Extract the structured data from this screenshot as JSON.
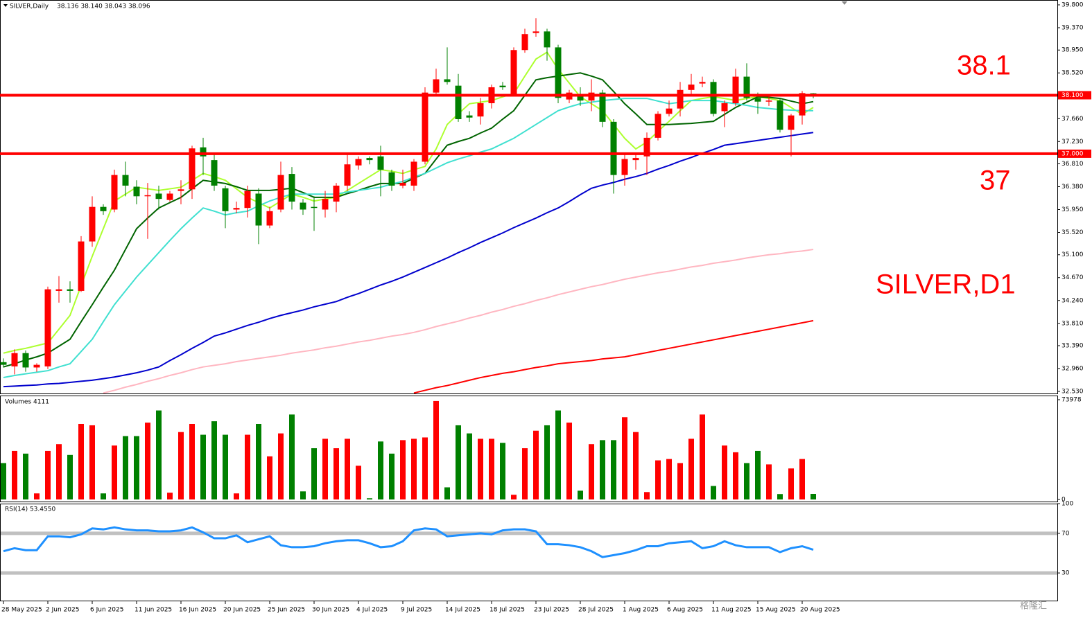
{
  "chart_data": [
    {
      "type": "candlestick",
      "title": "SILVER,Daily",
      "ohlc_text": "38.136 38.140 38.043 38.096",
      "categories": [
        "28 May 2025",
        null,
        null,
        null,
        "2 Jun 2025",
        null,
        null,
        null,
        "6 Jun 2025",
        null,
        null,
        null,
        "11 Jun 2025",
        null,
        null,
        null,
        "16 Jun 2025",
        null,
        null,
        null,
        "20 Jun 2025",
        null,
        null,
        null,
        "25 Jun 2025",
        null,
        null,
        null,
        "30 Jun 2025",
        null,
        null,
        null,
        "4 Jul 2025",
        null,
        null,
        null,
        "9 Jul 2025",
        null,
        null,
        null,
        "14 Jul 2025",
        null,
        null,
        null,
        "18 Jul 2025",
        null,
        null,
        null,
        "23 Jul 2025",
        null,
        null,
        null,
        "28 Jul 2025",
        null,
        null,
        null,
        "1 Aug 2025",
        null,
        null,
        null,
        "6 Aug 2025",
        null,
        null,
        null,
        "11 Aug 2025",
        null,
        null,
        null,
        "15 Aug 2025",
        null,
        null,
        null,
        "20 Aug 2025",
        null
      ],
      "open": [
        33.08,
        33.0,
        33.25,
        32.98,
        33.0,
        34.42,
        34.45,
        34.42,
        35.35,
        36.0,
        35.95,
        36.6,
        36.38,
        36.2,
        36.25,
        36.13,
        36.3,
        36.33,
        37.12,
        36.88,
        36.35,
        35.95,
        35.98,
        36.25,
        35.65,
        35.95,
        36.62,
        36.08,
        36.0,
        35.95,
        36.1,
        36.4,
        36.78,
        36.92,
        36.95,
        36.65,
        36.4,
        36.4,
        36.85,
        38.15,
        38.4,
        38.28,
        37.72,
        37.7,
        37.95,
        38.28,
        38.1,
        38.95,
        39.27,
        39.3,
        39.0,
        38.02,
        38.1,
        38.0,
        38.15,
        37.6,
        36.6,
        36.88,
        36.95,
        37.3,
        37.75,
        37.85,
        38.2,
        38.32,
        38.35,
        37.8,
        37.95,
        38.45,
        38.05,
        37.98,
        38.0,
        37.45,
        37.72,
        38.136
      ],
      "high": [
        33.15,
        33.32,
        33.3,
        33.06,
        34.5,
        34.7,
        34.6,
        35.45,
        36.2,
        36.05,
        36.7,
        36.85,
        36.5,
        36.45,
        36.4,
        36.3,
        36.5,
        37.15,
        37.3,
        37.0,
        36.4,
        36.1,
        36.4,
        36.35,
        36.0,
        36.85,
        36.75,
        36.15,
        36.2,
        36.3,
        36.45,
        37.0,
        36.95,
        36.95,
        37.15,
        36.7,
        36.7,
        36.9,
        38.25,
        38.6,
        39.0,
        38.5,
        37.8,
        38.05,
        38.3,
        38.35,
        39.0,
        39.35,
        39.55,
        39.35,
        39.05,
        38.2,
        38.25,
        38.4,
        38.2,
        37.65,
        37.0,
        37.0,
        37.4,
        37.8,
        38.0,
        38.35,
        38.5,
        38.45,
        38.4,
        38.0,
        38.6,
        38.7,
        38.15,
        38.1,
        38.05,
        37.75,
        38.18,
        38.14
      ],
      "low": [
        32.98,
        32.85,
        32.9,
        32.9,
        32.95,
        34.2,
        34.2,
        34.4,
        35.25,
        35.85,
        35.9,
        36.2,
        36.05,
        35.4,
        35.95,
        36.1,
        36.05,
        36.15,
        36.6,
        36.3,
        35.6,
        35.88,
        35.8,
        35.3,
        35.6,
        35.9,
        35.95,
        35.85,
        35.55,
        35.8,
        35.9,
        36.3,
        36.7,
        36.8,
        36.2,
        36.3,
        36.35,
        36.3,
        36.8,
        38.1,
        38.3,
        37.6,
        37.6,
        37.55,
        37.85,
        38.2,
        38.1,
        38.9,
        39.2,
        38.75,
        37.95,
        37.95,
        37.9,
        37.8,
        37.5,
        36.25,
        36.4,
        36.7,
        36.6,
        37.25,
        37.7,
        37.7,
        38.1,
        38.25,
        37.7,
        37.5,
        37.9,
        38.0,
        37.75,
        37.9,
        37.4,
        36.95,
        37.55,
        38.043
      ],
      "close": [
        33.03,
        33.25,
        32.98,
        33.03,
        34.45,
        34.45,
        34.42,
        35.35,
        36.0,
        35.92,
        36.6,
        36.4,
        36.2,
        36.22,
        36.15,
        36.25,
        36.33,
        37.1,
        36.95,
        36.4,
        35.92,
        35.98,
        36.3,
        35.65,
        35.92,
        36.6,
        36.1,
        35.95,
        35.98,
        36.15,
        36.4,
        36.8,
        36.9,
        36.88,
        36.7,
        36.4,
        36.45,
        36.85,
        38.15,
        38.4,
        38.35,
        37.65,
        37.68,
        37.95,
        38.25,
        38.25,
        38.95,
        39.25,
        39.3,
        39.0,
        38.05,
        38.15,
        38.0,
        38.15,
        37.6,
        36.6,
        36.9,
        36.92,
        37.3,
        37.75,
        37.85,
        38.2,
        38.3,
        38.35,
        37.75,
        37.95,
        38.45,
        38.05,
        37.98,
        38.0,
        37.45,
        37.72,
        38.14,
        38.096
      ],
      "up_color": "#ff0000",
      "down_color": "#008000",
      "overlays": [
        {
          "color": "#adff2f",
          "values": [
            33.25,
            33.3,
            33.34,
            33.39,
            33.44,
            33.7,
            33.96,
            34.52,
            35.07,
            35.59,
            36.11,
            36.24,
            36.37,
            36.34,
            36.31,
            36.34,
            36.37,
            36.5,
            36.63,
            36.57,
            36.5,
            36.34,
            36.18,
            36.08,
            35.98,
            36.11,
            36.24,
            36.18,
            36.11,
            36.15,
            36.18,
            36.31,
            36.44,
            36.57,
            36.7,
            36.67,
            36.63,
            36.7,
            36.76,
            37.09,
            37.55,
            37.75,
            37.94,
            37.97,
            38.0,
            38.07,
            38.13,
            38.46,
            38.78,
            38.91,
            38.59,
            38.33,
            38.07,
            37.94,
            37.81,
            37.55,
            37.29,
            37.09,
            37.22,
            37.42,
            37.61,
            37.81,
            38.0,
            38.04,
            38.07,
            38.04,
            38.0,
            38.04,
            38.07,
            38.04,
            38.0,
            37.87,
            37.74,
            37.87
          ]
        },
        {
          "color": "#006400",
          "values": [
            32.99,
            33.05,
            33.12,
            33.18,
            33.25,
            33.38,
            33.51,
            33.84,
            34.16,
            34.49,
            34.81,
            35.2,
            35.59,
            35.79,
            35.98,
            36.08,
            36.18,
            36.34,
            36.5,
            36.47,
            36.44,
            36.38,
            36.31,
            36.31,
            36.31,
            36.33,
            36.35,
            36.27,
            36.18,
            36.18,
            36.18,
            36.25,
            36.31,
            36.38,
            36.44,
            36.44,
            36.44,
            36.54,
            36.63,
            36.9,
            37.16,
            37.23,
            37.29,
            37.39,
            37.48,
            37.65,
            37.81,
            38.1,
            38.39,
            38.43,
            38.46,
            38.49,
            38.52,
            38.46,
            38.39,
            38.17,
            37.94,
            37.75,
            37.55,
            37.55,
            37.55,
            37.56,
            37.57,
            37.59,
            37.61,
            37.74,
            37.87,
            37.97,
            38.07,
            38.06,
            38.04,
            37.99,
            37.94,
            37.98
          ]
        },
        {
          "color": "#40e0d0",
          "values": [
            32.79,
            32.83,
            32.86,
            32.89,
            32.92,
            32.99,
            33.05,
            33.28,
            33.51,
            33.84,
            34.16,
            34.42,
            34.68,
            34.91,
            35.14,
            35.37,
            35.59,
            35.79,
            35.98,
            35.92,
            35.85,
            35.89,
            35.92,
            36.02,
            36.11,
            36.18,
            36.24,
            36.24,
            36.24,
            36.24,
            36.24,
            36.28,
            36.31,
            36.34,
            36.37,
            36.43,
            36.48,
            36.56,
            36.63,
            36.73,
            36.83,
            36.9,
            36.96,
            37.03,
            37.09,
            37.19,
            37.29,
            37.42,
            37.55,
            37.68,
            37.81,
            37.88,
            37.94,
            37.97,
            38.0,
            38.02,
            38.04,
            38.04,
            38.04,
            37.99,
            37.94,
            37.97,
            38.0,
            38.0,
            38.0,
            37.97,
            37.94,
            37.91,
            37.87,
            37.85,
            37.83,
            37.82,
            37.81,
            37.81
          ]
        },
        {
          "color": "#0000cd",
          "values": [
            32.62,
            32.63,
            32.64,
            32.65,
            32.67,
            32.68,
            32.7,
            32.72,
            32.74,
            32.77,
            32.8,
            32.84,
            32.88,
            32.93,
            32.99,
            33.11,
            33.22,
            33.34,
            33.45,
            33.57,
            33.63,
            33.7,
            33.77,
            33.83,
            33.9,
            33.96,
            34.01,
            34.06,
            34.12,
            34.17,
            34.22,
            34.3,
            34.37,
            34.45,
            34.53,
            34.6,
            34.68,
            34.77,
            34.86,
            34.95,
            35.04,
            35.14,
            35.23,
            35.33,
            35.42,
            35.51,
            35.61,
            35.7,
            35.79,
            35.89,
            35.98,
            36.1,
            36.23,
            36.35,
            36.41,
            36.46,
            36.52,
            36.57,
            36.63,
            36.71,
            36.78,
            36.86,
            36.93,
            37.01,
            37.08,
            37.16,
            37.19,
            37.22,
            37.25,
            37.28,
            37.31,
            37.34,
            37.37,
            37.4
          ]
        },
        {
          "color": "#ffb6c1",
          "values": [
            null,
            null,
            null,
            null,
            null,
            null,
            null,
            null,
            null,
            32.5,
            32.55,
            32.61,
            32.66,
            32.72,
            32.77,
            32.83,
            32.88,
            32.94,
            32.99,
            33.02,
            33.05,
            33.09,
            33.12,
            33.15,
            33.18,
            33.21,
            33.25,
            33.28,
            33.31,
            33.35,
            33.38,
            33.42,
            33.46,
            33.49,
            33.53,
            33.57,
            33.6,
            33.64,
            33.69,
            33.75,
            33.8,
            33.85,
            33.91,
            33.96,
            34.02,
            34.07,
            34.13,
            34.18,
            34.24,
            34.29,
            34.35,
            34.4,
            34.45,
            34.5,
            34.54,
            34.59,
            34.64,
            34.68,
            34.72,
            34.76,
            34.79,
            34.83,
            34.87,
            34.9,
            34.94,
            34.97,
            35.0,
            35.04,
            35.07,
            35.1,
            35.12,
            35.15,
            35.17,
            35.2
          ]
        },
        {
          "color": "#ff0000",
          "values": [
            null,
            null,
            null,
            null,
            null,
            null,
            null,
            null,
            null,
            null,
            null,
            null,
            null,
            null,
            null,
            null,
            null,
            null,
            null,
            null,
            null,
            null,
            null,
            null,
            null,
            null,
            null,
            null,
            null,
            null,
            null,
            null,
            null,
            null,
            null,
            null,
            null,
            32.5,
            32.55,
            32.6,
            32.64,
            32.69,
            32.74,
            32.79,
            32.83,
            32.87,
            32.9,
            32.94,
            32.98,
            33.01,
            33.05,
            33.07,
            33.09,
            33.11,
            33.14,
            33.16,
            33.18,
            33.22,
            33.26,
            33.3,
            33.34,
            33.38,
            33.42,
            33.46,
            33.5,
            33.54,
            33.58,
            33.62,
            33.66,
            33.7,
            33.74,
            33.78,
            33.82,
            33.86
          ]
        }
      ],
      "hlines": [
        {
          "value": 38.1,
          "label": "38.100",
          "color": "#ff0000"
        },
        {
          "value": 37.0,
          "label": "37.000",
          "color": "#ff0000"
        }
      ],
      "annotations": [
        "38.1",
        "37",
        "SILVER,D1"
      ],
      "ylim": [
        32.53,
        39.8
      ],
      "yticks": [
        {
          "value": 39.8,
          "label": "39.800"
        },
        {
          "value": 39.37,
          "label": "39.370"
        },
        {
          "value": 38.95,
          "label": "38.950"
        },
        {
          "value": 38.52,
          "label": "38.520"
        },
        {
          "value": 37.66,
          "label": "37.660"
        },
        {
          "value": 37.23,
          "label": "37.230"
        },
        {
          "value": 36.81,
          "label": "36.810"
        },
        {
          "value": 36.38,
          "label": "36.380"
        },
        {
          "value": 35.95,
          "label": "35.950"
        },
        {
          "value": 35.52,
          "label": "35.520"
        },
        {
          "value": 35.1,
          "label": "35.100"
        },
        {
          "value": 34.67,
          "label": "34.670"
        },
        {
          "value": 34.24,
          "label": "34.240"
        },
        {
          "value": 33.81,
          "label": "33.810"
        },
        {
          "value": 33.39,
          "label": "33.390"
        },
        {
          "value": 32.96,
          "label": "32.960"
        },
        {
          "value": 32.53,
          "label": "32.530"
        }
      ],
      "watermark": "格隆汇"
    },
    {
      "type": "bar",
      "title": "Volumes 4111",
      "values": [
        27000,
        36000,
        34000,
        4500,
        36000,
        41000,
        33000,
        56000,
        55000,
        4500,
        40000,
        47000,
        47000,
        57000,
        66000,
        5000,
        50000,
        56000,
        48000,
        58000,
        48000,
        4500,
        48000,
        56000,
        32000,
        49000,
        63000,
        6000,
        38000,
        45000,
        38000,
        45000,
        25000,
        900,
        43000,
        34000,
        44000,
        45000,
        46000,
        73000,
        9000,
        55000,
        49000,
        45000,
        45000,
        42000,
        3500,
        38000,
        51000,
        55000,
        66000,
        57000,
        6500,
        41000,
        44000,
        44000,
        61000,
        50000,
        5500,
        29000,
        30000,
        27000,
        45000,
        63000,
        10000,
        40000,
        35000,
        27000,
        36000,
        26000,
        4000,
        23000,
        30000,
        4111
      ],
      "ylim": [
        0,
        73978
      ],
      "yticks": [
        0,
        73978
      ]
    },
    {
      "type": "line",
      "title": "RSI(14) 53.4550",
      "color": "#1e90ff",
      "level_color": "#c0c0c0",
      "values": [
        52,
        55,
        53,
        53,
        67,
        67,
        66,
        69,
        75,
        74,
        76,
        74,
        73,
        73,
        72,
        72,
        73,
        76,
        71,
        65,
        65,
        68,
        61,
        64,
        67,
        58,
        56,
        56,
        57,
        60,
        62,
        63,
        63,
        60,
        56,
        57,
        62,
        73,
        75,
        74,
        67,
        68,
        69,
        70,
        69,
        73,
        74,
        74,
        72,
        59,
        59,
        58,
        56,
        52,
        46,
        48,
        50,
        53,
        57,
        57,
        60,
        61,
        62,
        55,
        57,
        62,
        58,
        56,
        56,
        56,
        51,
        55,
        57,
        53.455
      ],
      "levels": [
        70,
        30
      ],
      "ylim": [
        0,
        100
      ],
      "yticks": [
        30,
        70,
        100
      ]
    }
  ]
}
